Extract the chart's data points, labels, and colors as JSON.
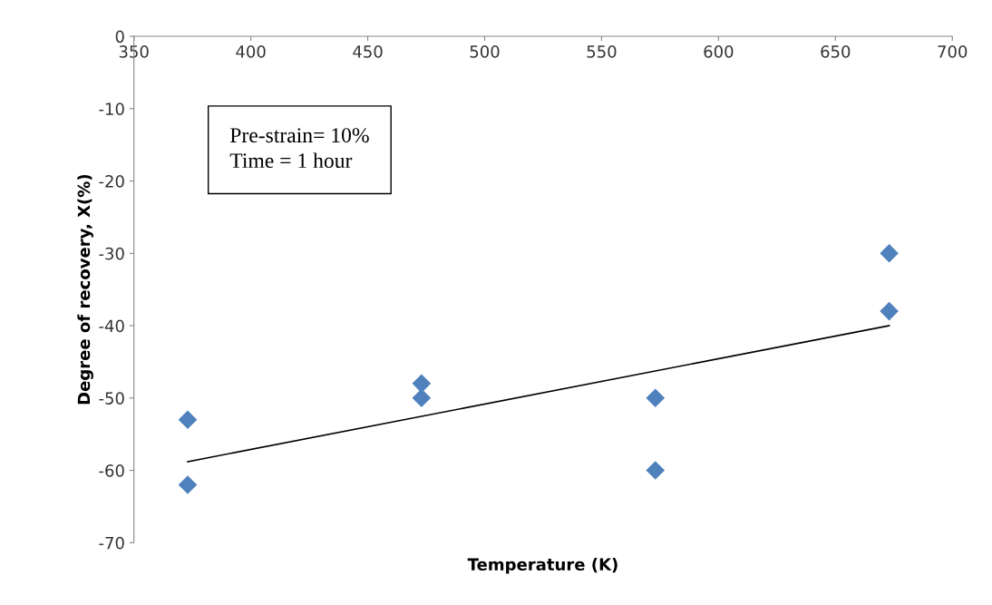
{
  "chart_data": {
    "type": "scatter",
    "xlabel": "Temperature (K)",
    "ylabel": "Degree of recovery, X(%)",
    "annotations": [
      "Pre-strain= 10%\nTime = 1 hour"
    ],
    "series": [
      {
        "marker": "diamond",
        "color": "#4f81bd",
        "x": [
          373,
          373,
          473,
          473,
          573,
          573,
          673,
          673
        ],
        "values": [
          -53,
          -62,
          -48,
          -50,
          -50,
          -60,
          -30,
          -38
        ]
      },
      {
        "type": "line",
        "marker": "none",
        "color": "#000000",
        "x": [
          373,
          673
        ],
        "values": [
          -58.8,
          -40
        ]
      }
    ],
    "grid": false,
    "legend": false,
    "xlim": [
      350,
      700
    ],
    "xticks": [
      350,
      400,
      450,
      500,
      550,
      600,
      650,
      700
    ],
    "ylim": [
      -70,
      0
    ],
    "yticks": [
      -70,
      -60,
      -50,
      -40,
      -30,
      -20,
      -10,
      0
    ]
  }
}
